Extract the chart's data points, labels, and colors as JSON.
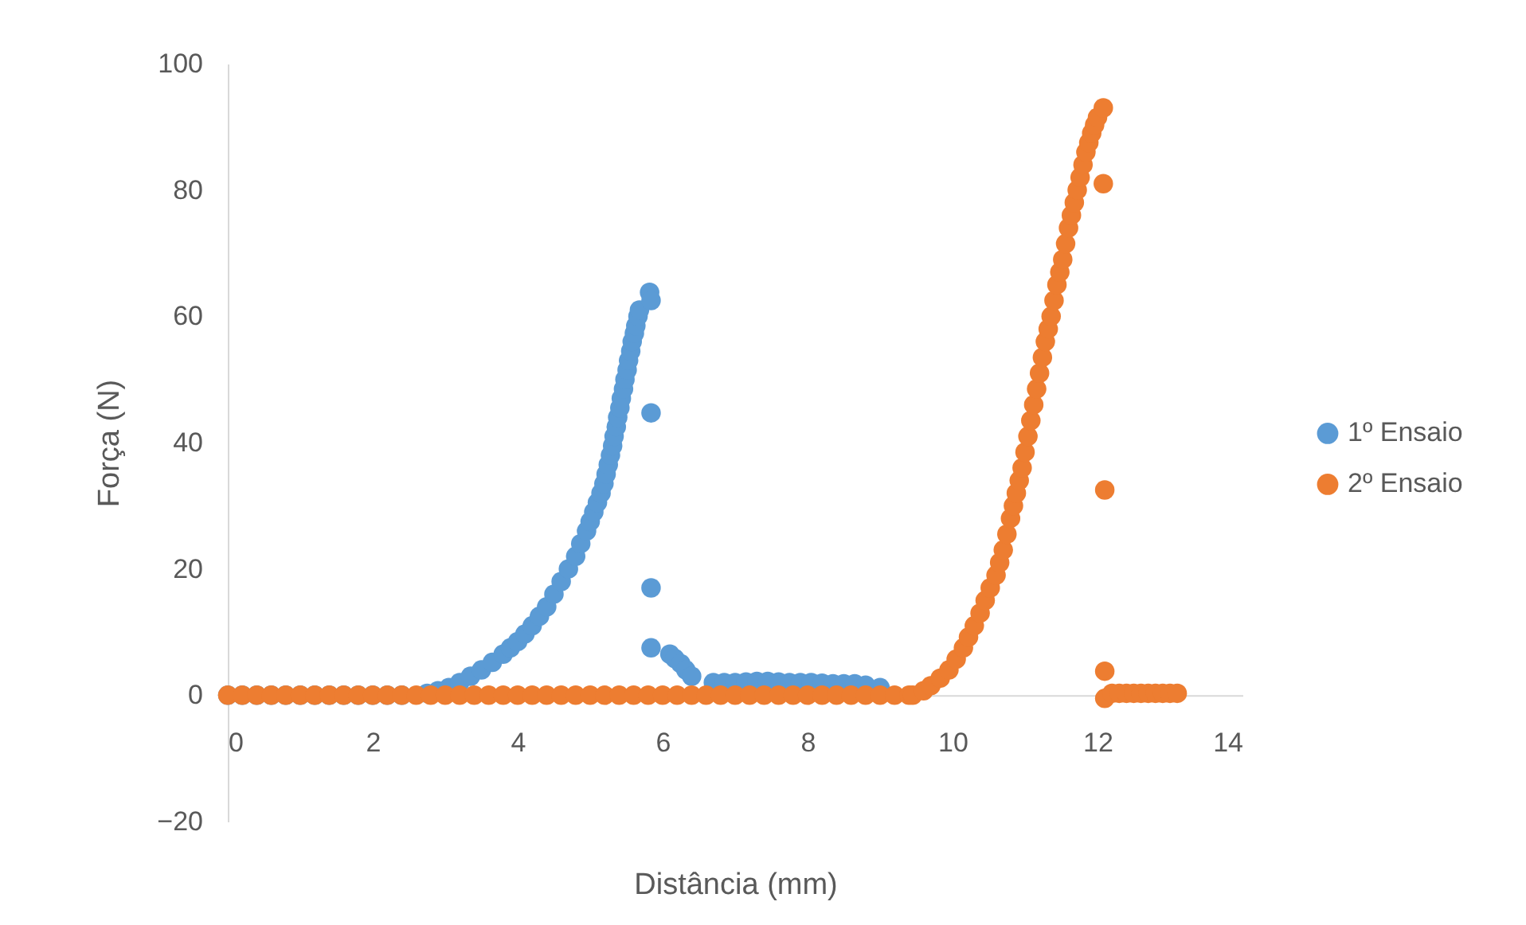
{
  "chart_data": {
    "type": "scatter",
    "xlabel": "Distância (mm)",
    "ylabel": "Força (N)",
    "xlim": [
      0,
      14
    ],
    "xticks": [
      0,
      2,
      4,
      6,
      8,
      10,
      12,
      14
    ],
    "ylim": [
      -20,
      100
    ],
    "yticks": [
      -20,
      0,
      20,
      40,
      60,
      80,
      100
    ],
    "grid": false,
    "legend": "right",
    "marker": "circle",
    "series": [
      {
        "name": "1º Ensaio",
        "color": "#5b9bd5",
        "x": [
          0,
          0.2,
          0.4,
          0.6,
          0.8,
          1.0,
          1.2,
          1.4,
          1.6,
          1.8,
          2.0,
          2.2,
          2.4,
          2.75,
          2.9,
          3.05,
          3.2,
          3.35,
          3.5,
          3.65,
          3.8,
          3.9,
          4.0,
          4.1,
          4.2,
          4.3,
          4.4,
          4.5,
          4.6,
          4.7,
          4.8,
          4.87,
          4.95,
          5.0,
          5.05,
          5.1,
          5.15,
          5.19,
          5.22,
          5.25,
          5.28,
          5.31,
          5.33,
          5.36,
          5.38,
          5.41,
          5.43,
          5.46,
          5.48,
          5.51,
          5.53,
          5.56,
          5.58,
          5.61,
          5.63,
          5.66,
          5.68,
          5.82,
          5.84,
          5.84,
          5.84,
          5.84,
          6.1,
          6.17,
          6.25,
          6.32,
          6.4,
          6.7,
          6.85,
          7.0,
          7.15,
          7.3,
          7.45,
          7.6,
          7.75,
          7.9,
          8.05,
          8.2,
          8.35,
          8.5,
          8.65,
          8.8,
          9.0
        ],
        "values": [
          0,
          0,
          0,
          0,
          0,
          0,
          0,
          0,
          0,
          0,
          0,
          0,
          0,
          0.3,
          0.7,
          1.2,
          2,
          3,
          4,
          5.2,
          6.5,
          7.5,
          8.5,
          9.7,
          11,
          12.5,
          14,
          16,
          18,
          20,
          22,
          24,
          26,
          27.5,
          29,
          30.5,
          32,
          33.5,
          35,
          36.5,
          38,
          39.5,
          41,
          42.5,
          44,
          45.5,
          47,
          48.5,
          50,
          51.5,
          53,
          54.5,
          56,
          57.3,
          58.5,
          60,
          61,
          63.8,
          62.5,
          44.7,
          17,
          7.5,
          6.5,
          5.8,
          5,
          4,
          3,
          2,
          2,
          2,
          2.1,
          2.2,
          2.2,
          2.1,
          2,
          2,
          2,
          1.9,
          1.8,
          1.8,
          1.8,
          1.6,
          1.2
        ]
      },
      {
        "name": "2º Ensaio",
        "color": "#ed7d31",
        "x": [
          0,
          0.2,
          0.4,
          0.6,
          0.8,
          1.0,
          1.2,
          1.4,
          1.6,
          1.8,
          2.0,
          2.2,
          2.4,
          2.6,
          2.8,
          3.0,
          3.2,
          3.4,
          3.6,
          3.8,
          4.0,
          4.2,
          4.4,
          4.6,
          4.8,
          5.0,
          5.2,
          5.4,
          5.6,
          5.8,
          6.0,
          6.2,
          6.4,
          6.6,
          6.8,
          7.0,
          7.2,
          7.4,
          7.6,
          7.8,
          8.0,
          8.2,
          8.4,
          8.6,
          8.8,
          9.0,
          9.2,
          9.4,
          9.45,
          9.6,
          9.7,
          9.83,
          9.95,
          10.05,
          10.15,
          10.22,
          10.3,
          10.38,
          10.45,
          10.52,
          10.6,
          10.65,
          10.7,
          10.75,
          10.8,
          10.84,
          10.88,
          10.92,
          10.96,
          11.0,
          11.04,
          11.08,
          11.12,
          11.16,
          11.2,
          11.24,
          11.28,
          11.32,
          11.36,
          11.4,
          11.44,
          11.48,
          11.52,
          11.56,
          11.6,
          11.64,
          11.68,
          11.72,
          11.76,
          11.8,
          11.84,
          11.88,
          11.92,
          11.96,
          12.0,
          12.08,
          12.08,
          12.1,
          12.1,
          12.1,
          12.2,
          12.3,
          12.4,
          12.5,
          12.6,
          12.7,
          12.8,
          12.9,
          13.0,
          13.1
        ],
        "values": [
          0,
          0,
          0,
          0,
          0,
          0,
          0,
          0,
          0,
          0,
          0,
          0,
          0,
          0,
          0,
          0,
          0,
          0,
          0,
          0,
          0,
          0,
          0,
          0,
          0,
          0,
          0,
          0,
          0,
          0,
          0,
          0,
          0,
          0,
          0,
          0,
          0,
          0,
          0,
          0,
          0,
          0,
          0,
          0,
          0,
          0,
          0,
          0,
          0,
          0.7,
          1.5,
          2.7,
          4,
          5.7,
          7.5,
          9.2,
          11,
          13,
          15,
          17,
          19,
          21,
          23,
          25.5,
          28,
          30,
          32,
          34,
          36,
          38.5,
          41,
          43.5,
          46,
          48.5,
          51,
          53.5,
          56,
          58,
          60,
          62.5,
          65,
          67,
          69,
          71.5,
          74,
          76,
          78,
          80,
          82,
          84,
          86,
          87.5,
          89,
          90.3,
          91.5,
          93,
          81,
          32.5,
          3.8,
          -0.5,
          0.3,
          0.3,
          0.3,
          0.3,
          0.3,
          0.3,
          0.3,
          0.3,
          0.3,
          0.3
        ]
      }
    ]
  }
}
